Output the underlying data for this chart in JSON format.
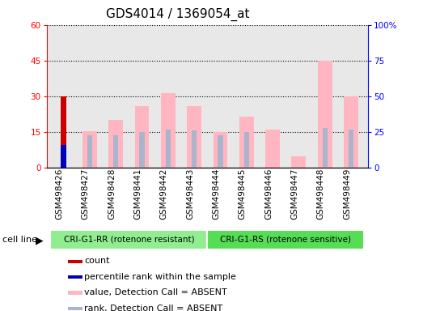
{
  "title": "GDS4014 / 1369054_at",
  "samples": [
    "GSM498426",
    "GSM498427",
    "GSM498428",
    "GSM498441",
    "GSM498442",
    "GSM498443",
    "GSM498444",
    "GSM498445",
    "GSM498446",
    "GSM498447",
    "GSM498448",
    "GSM498449"
  ],
  "groups": [
    "CRI-G1-RR (rotenone resistant)",
    "CRI-G1-RR (rotenone resistant)",
    "CRI-G1-RR (rotenone resistant)",
    "CRI-G1-RR (rotenone resistant)",
    "CRI-G1-RR (rotenone resistant)",
    "CRI-G1-RR (rotenone resistant)",
    "CRI-G1-RS (rotenone sensitive)",
    "CRI-G1-RS (rotenone sensitive)",
    "CRI-G1-RS (rotenone sensitive)",
    "CRI-G1-RS (rotenone sensitive)",
    "CRI-G1-RS (rotenone sensitive)",
    "CRI-G1-RS (rotenone sensitive)"
  ],
  "group_labels": [
    "CRI-G1-RR (rotenone resistant)",
    "CRI-G1-RS (rotenone sensitive)"
  ],
  "count": [
    30,
    0,
    0,
    0,
    0,
    0,
    0,
    0,
    0,
    0,
    0,
    0
  ],
  "rank": [
    16,
    0,
    0,
    0,
    0,
    0,
    0,
    0,
    0,
    0,
    0,
    0
  ],
  "value_absent": [
    0,
    15.5,
    20,
    26,
    31.5,
    26,
    15,
    21.5,
    16,
    5,
    45,
    30
  ],
  "rank_absent": [
    0,
    23,
    23,
    25,
    27,
    26,
    23,
    25,
    0,
    0,
    28,
    27
  ],
  "ylim_left": [
    0,
    60
  ],
  "ylim_right": [
    0,
    100
  ],
  "yticks_left": [
    0,
    15,
    30,
    45,
    60
  ],
  "yticks_right": [
    0,
    25,
    50,
    75,
    100
  ],
  "cell_line_label": "cell line",
  "legend": [
    {
      "label": "count",
      "color": "#cc0000"
    },
    {
      "label": "percentile rank within the sample",
      "color": "#0000bb"
    },
    {
      "label": "value, Detection Call = ABSENT",
      "color": "#ffb6c1"
    },
    {
      "label": "rank, Detection Call = ABSENT",
      "color": "#aab4cc"
    }
  ],
  "plot_bgcolor": "#e8e8e8",
  "title_fontsize": 11,
  "tick_fontsize": 7.5
}
